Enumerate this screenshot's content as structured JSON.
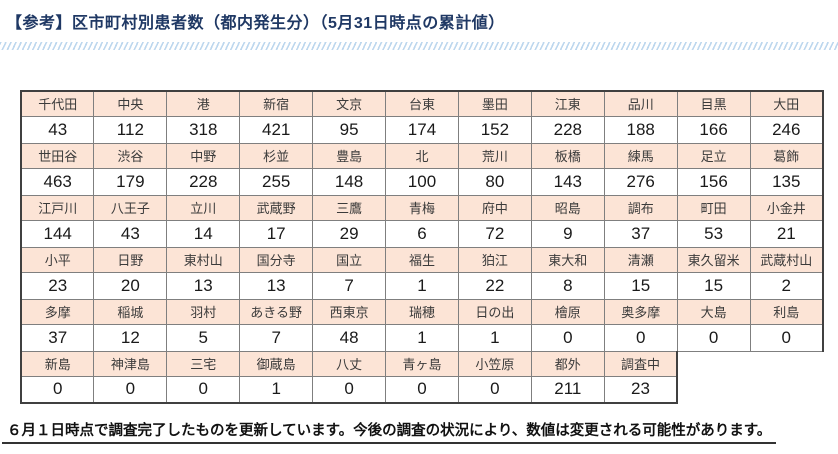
{
  "title": "【参考】区市町村別患者数（都内発生分）（5月31日時点の累計値）",
  "footer_note": "６月１日時点で調査完了したものを更新しています。今後の調査の状況により、数値は変更される可能性があります。",
  "colors": {
    "title_text": "#1f3864",
    "header_fill": "#fce4d6",
    "grid_line": "#7f7f7f",
    "outer_border": "#404040",
    "stripe_blue": "#bdd7ee"
  },
  "table": {
    "columns_per_row": 11,
    "rows": [
      {
        "headers": [
          "千代田",
          "中央",
          "港",
          "新宿",
          "文京",
          "台東",
          "墨田",
          "江東",
          "品川",
          "目黒",
          "大田"
        ],
        "values": [
          43,
          112,
          318,
          421,
          95,
          174,
          152,
          228,
          188,
          166,
          246
        ]
      },
      {
        "headers": [
          "世田谷",
          "渋谷",
          "中野",
          "杉並",
          "豊島",
          "北",
          "荒川",
          "板橋",
          "練馬",
          "足立",
          "葛飾"
        ],
        "values": [
          463,
          179,
          228,
          255,
          148,
          100,
          80,
          143,
          276,
          156,
          135
        ]
      },
      {
        "headers": [
          "江戸川",
          "八王子",
          "立川",
          "武蔵野",
          "三鷹",
          "青梅",
          "府中",
          "昭島",
          "調布",
          "町田",
          "小金井"
        ],
        "values": [
          144,
          43,
          14,
          17,
          29,
          6,
          72,
          9,
          37,
          53,
          21
        ]
      },
      {
        "headers": [
          "小平",
          "日野",
          "東村山",
          "国分寺",
          "国立",
          "福生",
          "狛江",
          "東大和",
          "清瀬",
          "東久留米",
          "武蔵村山"
        ],
        "values": [
          23,
          20,
          13,
          13,
          7,
          1,
          22,
          8,
          15,
          15,
          2
        ]
      },
      {
        "headers": [
          "多摩",
          "稲城",
          "羽村",
          "あきる野",
          "西東京",
          "瑞穂",
          "日の出",
          "檜原",
          "奥多摩",
          "大島",
          "利島"
        ],
        "values": [
          37,
          12,
          5,
          7,
          48,
          1,
          1,
          0,
          0,
          0,
          0
        ]
      },
      {
        "headers": [
          "新島",
          "神津島",
          "三宅",
          "御蔵島",
          "八丈",
          "青ヶ島",
          "小笠原",
          "都外",
          "調査中"
        ],
        "values": [
          0,
          0,
          0,
          1,
          0,
          0,
          0,
          211,
          23
        ]
      }
    ]
  }
}
